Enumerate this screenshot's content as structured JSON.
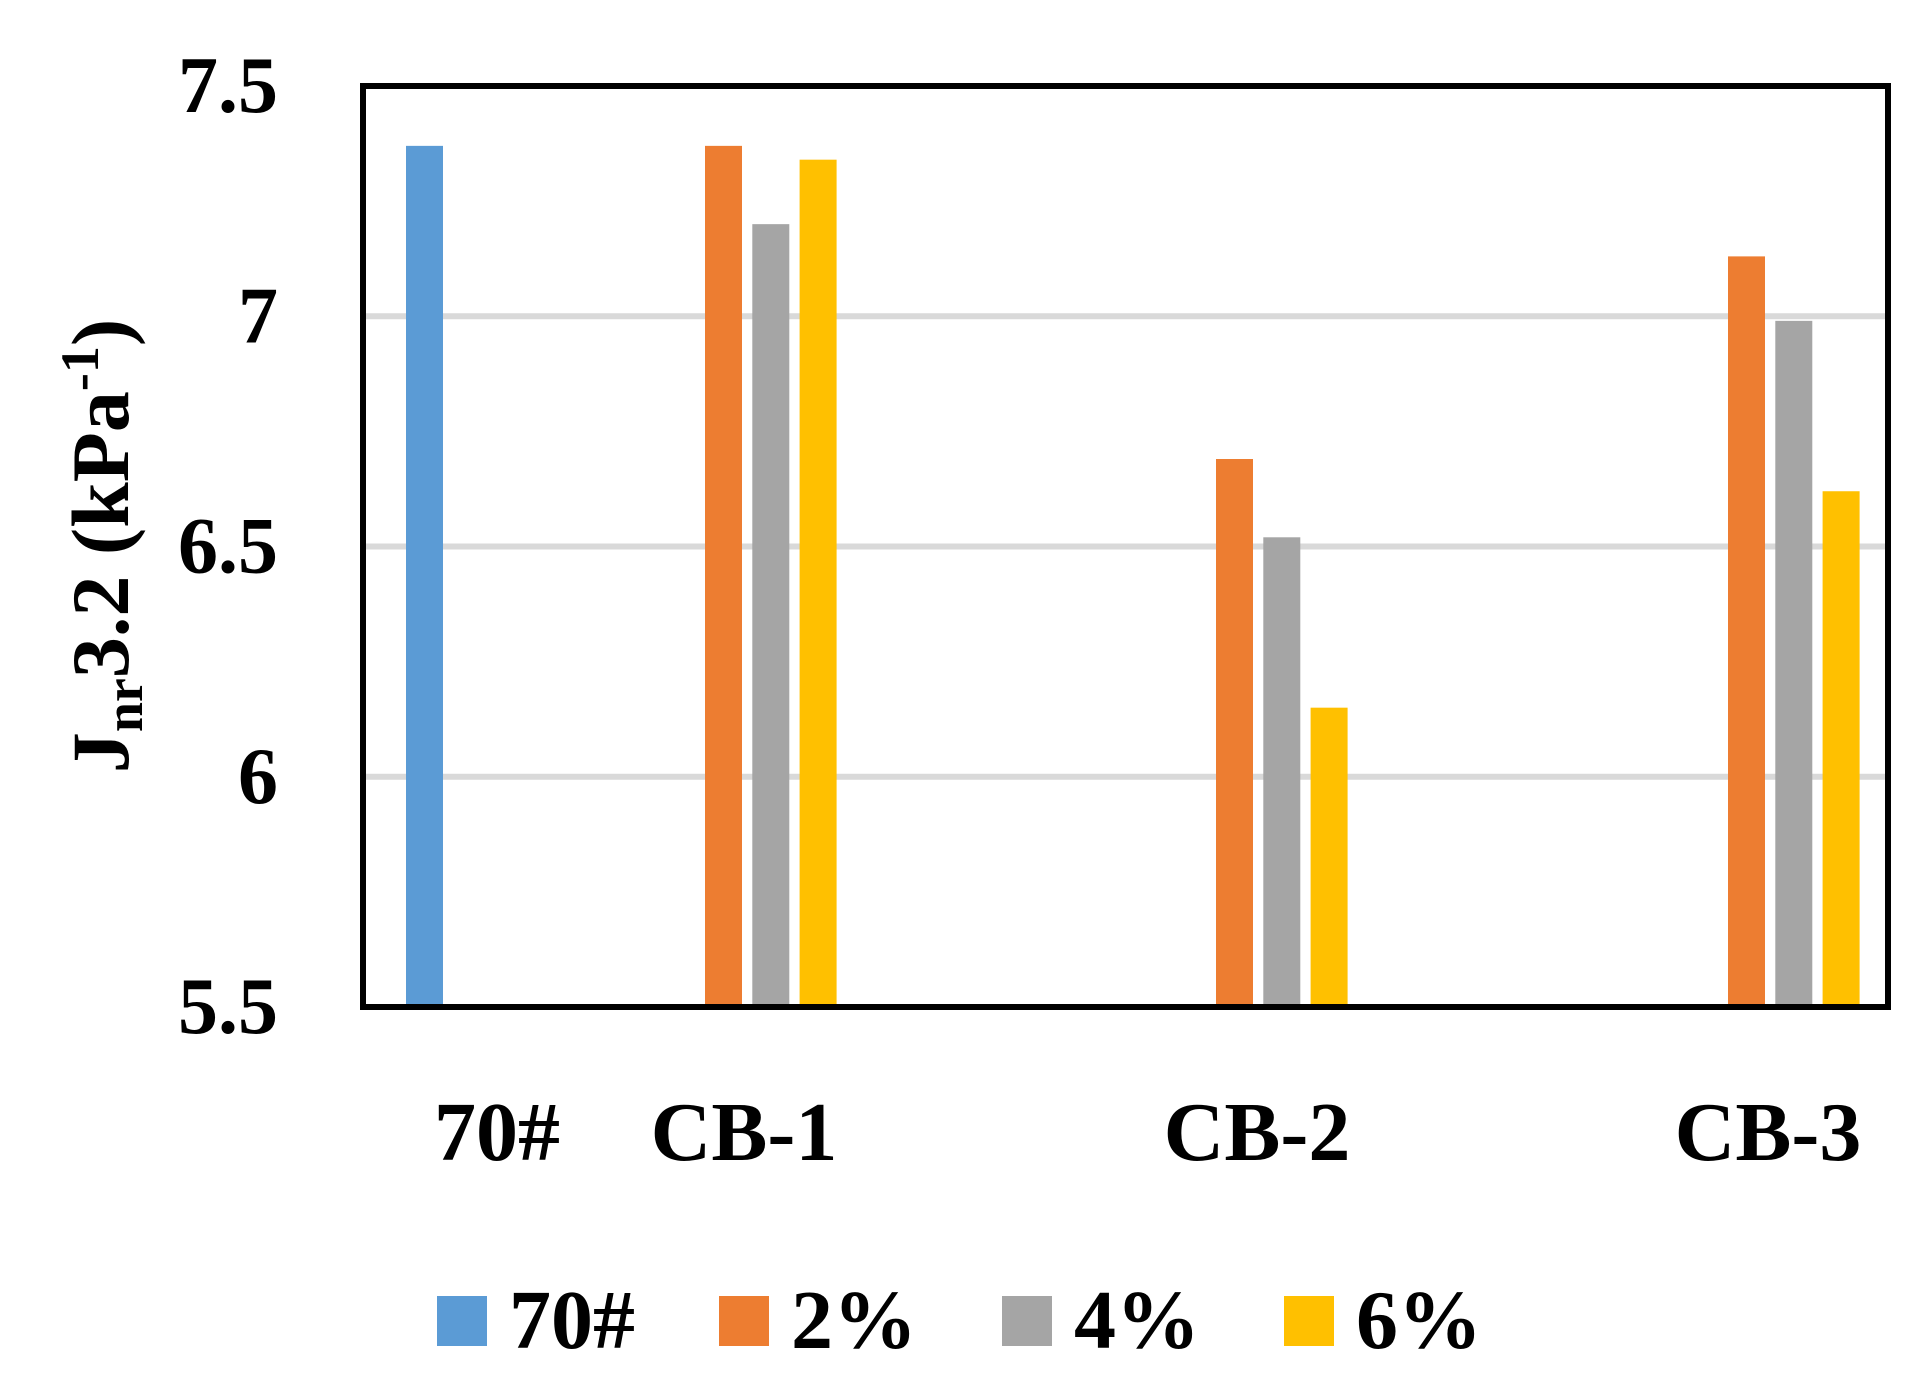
{
  "chart_data": {
    "type": "bar",
    "categories": [
      "70#",
      "CB-1",
      "CB-2",
      "CB-3"
    ],
    "series": [
      {
        "name": "70#",
        "color": "#5B9BD5",
        "values": [
          7.37,
          null,
          null,
          null
        ]
      },
      {
        "name": "2%",
        "color": "#ED7D31",
        "values": [
          null,
          7.37,
          6.69,
          7.13
        ]
      },
      {
        "name": "4%",
        "color": "#A5A5A5",
        "values": [
          null,
          7.2,
          6.52,
          6.99
        ]
      },
      {
        "name": "6%",
        "color": "#FFC000",
        "values": [
          null,
          7.34,
          6.15,
          6.62
        ]
      }
    ],
    "title": "",
    "xlabel": "",
    "ylabel": {
      "main": "J",
      "sub": "nr",
      "rest": "3.2 (kPa",
      "sup": "-1",
      "close": ")"
    },
    "ylim": [
      5.5,
      7.5
    ],
    "yticks": [
      "5.5",
      "6",
      "6.5",
      "7",
      "7.5"
    ],
    "grid": true,
    "legend": "bottom"
  }
}
